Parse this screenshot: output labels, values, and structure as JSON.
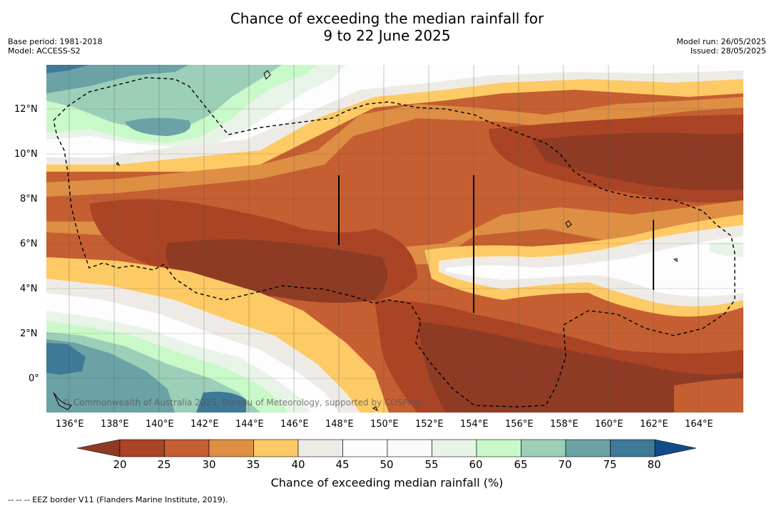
{
  "title_line1": "Chance of exceeding the median rainfall for",
  "title_line2": "9 to 22 June 2025",
  "base_period": "Base period: 1981-2018",
  "model": "Model: ACCESS-S2",
  "model_run": "Model run: 26/05/2025",
  "issued": "Issued: 28/05/2025",
  "watermark": "© Commonwealth of Australia 2025, Bureau of Meteorology, supported by COSPPac",
  "x_ticks": [
    "136°E",
    "138°E",
    "140°E",
    "142°E",
    "144°E",
    "146°E",
    "148°E",
    "150°E",
    "152°E",
    "154°E",
    "156°E",
    "158°E",
    "160°E",
    "162°E",
    "164°E"
  ],
  "y_ticks": [
    "12°N",
    "10°N",
    "8°N",
    "6°N",
    "4°N",
    "2°N",
    "0°"
  ],
  "colorbar": {
    "title": "Chance of exceeding median rainfall (%)",
    "ticks": [
      "20",
      "25",
      "30",
      "35",
      "40",
      "45",
      "50",
      "55",
      "60",
      "65",
      "70",
      "75",
      "80"
    ],
    "colors": [
      "#8f3b24",
      "#aa4425",
      "#c55f32",
      "#de8f44",
      "#fdca65",
      "#eeebe6",
      "#fdfdfd",
      "#fafafa",
      "#e8f4e7",
      "#c9f8c9",
      "#9ccfb7",
      "#6ba2a5",
      "#3e7998",
      "#114c88"
    ]
  },
  "footnote": "--  --  -- EEZ border V11 (Flanders Marine Institute, 2019)."
}
